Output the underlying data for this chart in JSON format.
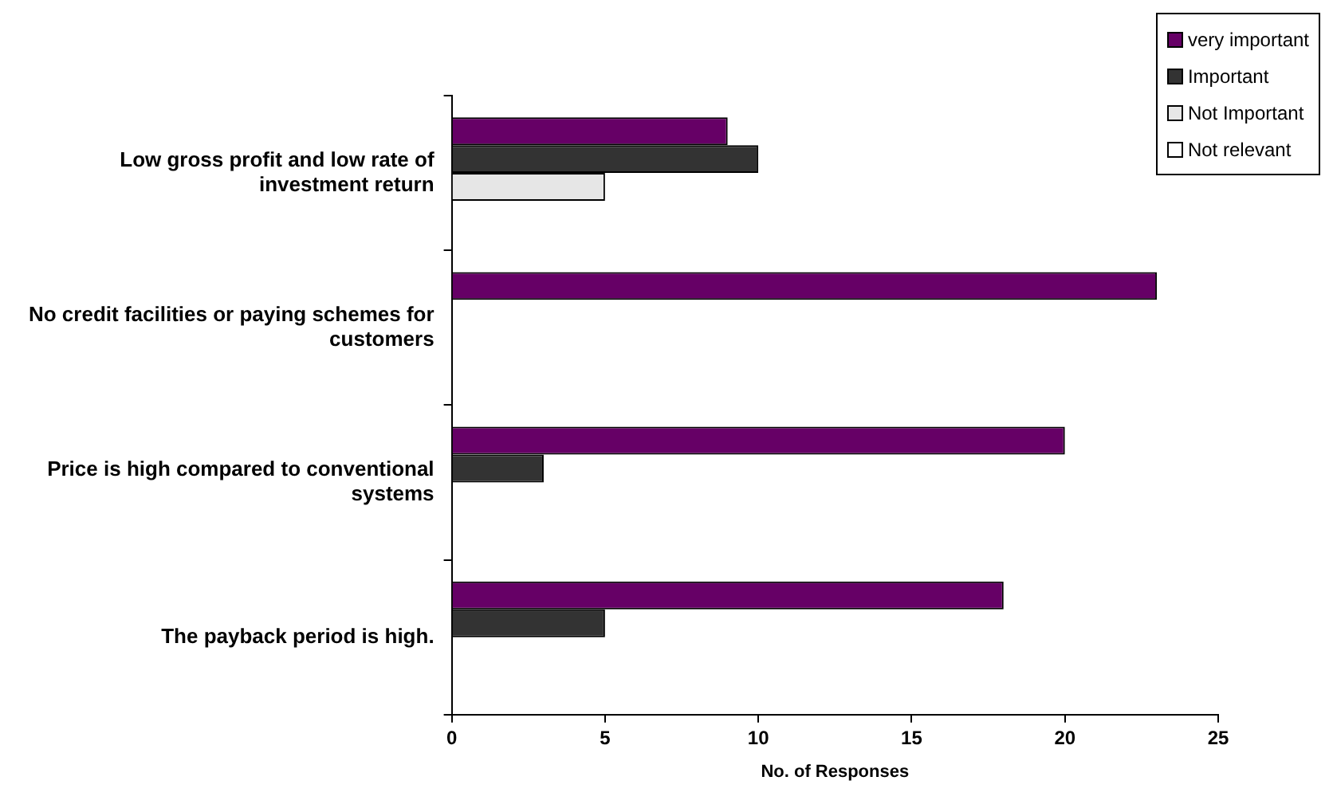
{
  "chart_data": {
    "type": "bar",
    "orientation": "horizontal",
    "xlabel": "No. of Responses",
    "categories": [
      "Low gross profit and low rate of investment return",
      "No credit facilities or paying schemes for customers",
      "Price is high compared to conventional systems",
      "The payback period is high."
    ],
    "series": [
      {
        "name": "very important",
        "color": "#660066",
        "values": [
          9,
          23,
          20,
          18
        ]
      },
      {
        "name": "Important",
        "color": "#333333",
        "values": [
          10,
          null,
          3,
          5
        ]
      },
      {
        "name": "Not Important",
        "color": "#e6e6e6",
        "values": [
          5,
          null,
          null,
          null
        ]
      },
      {
        "name": "Not relevant",
        "color": "#ffffff",
        "values": [
          null,
          null,
          null,
          null
        ]
      }
    ],
    "xlim": [
      0,
      25
    ],
    "xticks": [
      0,
      5,
      10,
      15,
      20,
      25
    ],
    "grid": false,
    "legend": "top right"
  }
}
